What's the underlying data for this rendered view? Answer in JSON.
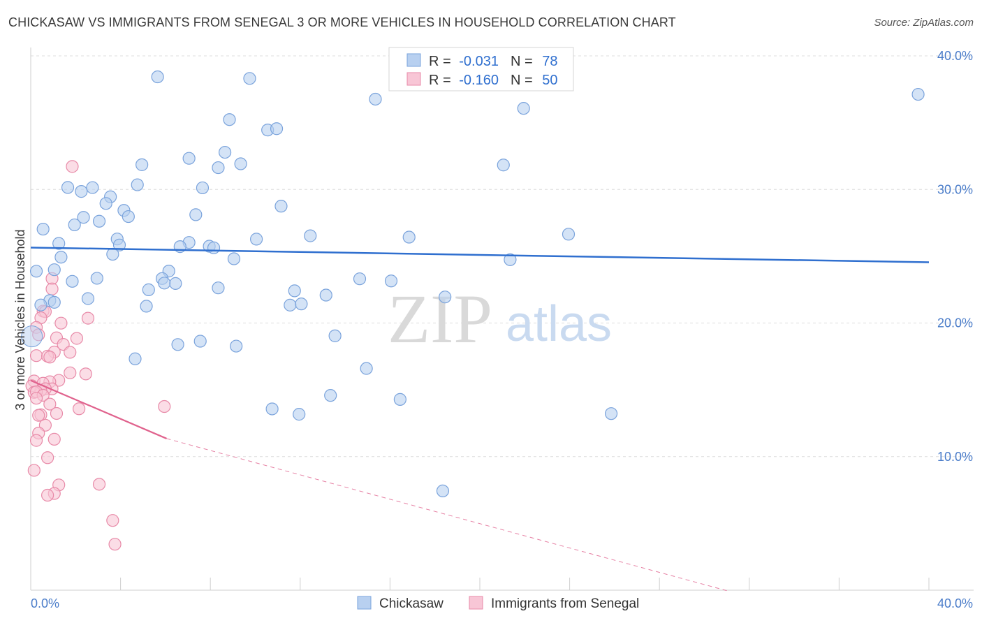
{
  "title": "CHICKASAW VS IMMIGRANTS FROM SENEGAL 3 OR MORE VEHICLES IN HOUSEHOLD CORRELATION CHART",
  "source": "Source: ZipAtlas.com",
  "watermark": {
    "zip": "ZIP",
    "atlas": "atlas"
  },
  "colors": {
    "blue_fill": "#b8d0f0",
    "blue_stroke": "#7aa3dc",
    "blue_line": "#2f6fcf",
    "pink_fill": "#f8c6d6",
    "pink_stroke": "#e88aa8",
    "pink_line": "#e0628d",
    "tick": "#4a7cc9",
    "grid": "#dcdcdc"
  },
  "chart_data": {
    "type": "scatter",
    "title": "CHICKASAW VS IMMIGRANTS FROM SENEGAL 3 OR MORE VEHICLES IN HOUSEHOLD CORRELATION CHART",
    "xlabel": "",
    "ylabel": "3 or more Vehicles in Household",
    "xlim": [
      0,
      0.4
    ],
    "ylim": [
      0,
      0.4
    ],
    "x_tick_labels": [
      "0.0%",
      "40.0%"
    ],
    "y_ticks": [
      {
        "value": 0.1,
        "label": "10.0%"
      },
      {
        "value": 0.2,
        "label": "20.0%"
      },
      {
        "value": 0.3,
        "label": "30.0%"
      },
      {
        "value": 0.4,
        "label": "40.0%"
      }
    ],
    "grid": true,
    "legend_placement": "top-center",
    "stats": [
      {
        "r_label": "R =",
        "r_value": "-0.031",
        "n_label": "N =",
        "n_value": "78"
      },
      {
        "r_label": "R =",
        "r_value": "-0.160",
        "n_label": "N =",
        "n_value": "50"
      }
    ],
    "series": [
      {
        "name": "Chickasaw",
        "trend": {
          "x0": 0.0,
          "y0": 0.2565,
          "x1": 0.4,
          "y1": 0.2455
        },
        "points": [
          [
            0.0565,
            0.3843
          ],
          [
            0.0975,
            0.3831
          ],
          [
            0.1535,
            0.3676
          ],
          [
            0.3952,
            0.3712
          ],
          [
            0.2195,
            0.3607
          ],
          [
            0.0885,
            0.3523
          ],
          [
            0.1055,
            0.3445
          ],
          [
            0.1095,
            0.3455
          ],
          [
            0.0865,
            0.3278
          ],
          [
            0.0705,
            0.3233
          ],
          [
            0.0495,
            0.3185
          ],
          [
            0.0835,
            0.3163
          ],
          [
            0.0935,
            0.3192
          ],
          [
            0.2105,
            0.3183
          ],
          [
            0.0475,
            0.3035
          ],
          [
            0.0765,
            0.3012
          ],
          [
            0.0165,
            0.3015
          ],
          [
            0.0225,
            0.2985
          ],
          [
            0.0275,
            0.3014
          ],
          [
            0.0355,
            0.2945
          ],
          [
            0.0335,
            0.2895
          ],
          [
            0.1115,
            0.2875
          ],
          [
            0.0415,
            0.2843
          ],
          [
            0.0735,
            0.2811
          ],
          [
            0.0435,
            0.2797
          ],
          [
            0.0235,
            0.2791
          ],
          [
            0.0305,
            0.2762
          ],
          [
            0.0195,
            0.2735
          ],
          [
            0.0055,
            0.2703
          ],
          [
            0.2395,
            0.2665
          ],
          [
            0.1245,
            0.2653
          ],
          [
            0.1685,
            0.2643
          ],
          [
            0.0385,
            0.2629
          ],
          [
            0.1005,
            0.2628
          ],
          [
            0.0705,
            0.2603
          ],
          [
            0.0125,
            0.2596
          ],
          [
            0.0395,
            0.2584
          ],
          [
            0.0665,
            0.2572
          ],
          [
            0.0795,
            0.2575
          ],
          [
            0.0815,
            0.2563
          ],
          [
            0.0365,
            0.2515
          ],
          [
            0.0135,
            0.2493
          ],
          [
            0.0905,
            0.2481
          ],
          [
            0.2135,
            0.2474
          ],
          [
            0.0025,
            0.2388
          ],
          [
            0.0105,
            0.2399
          ],
          [
            0.0615,
            0.2389
          ],
          [
            0.0295,
            0.2335
          ],
          [
            0.0585,
            0.2333
          ],
          [
            0.1465,
            0.2331
          ],
          [
            0.1605,
            0.2315
          ],
          [
            0.0185,
            0.2312
          ],
          [
            0.0595,
            0.2299
          ],
          [
            0.0645,
            0.2296
          ],
          [
            0.0835,
            0.2263
          ],
          [
            0.0525,
            0.2249
          ],
          [
            0.1175,
            0.2241
          ],
          [
            0.1315,
            0.2209
          ],
          [
            0.1845,
            0.2195
          ],
          [
            0.0255,
            0.2183
          ],
          [
            0.0085,
            0.2168
          ],
          [
            0.0515,
            0.2126
          ],
          [
            0.1155,
            0.2134
          ],
          [
            0.1205,
            0.2143
          ],
          [
            0.0045,
            0.2135
          ],
          [
            0.0105,
            0.2155
          ],
          [
            0.1355,
            0.1904
          ],
          [
            0.0755,
            0.1864
          ],
          [
            0.0655,
            0.1839
          ],
          [
            0.0915,
            0.1827
          ],
          [
            0.0465,
            0.1732
          ],
          [
            0.1495,
            0.166
          ],
          [
            0.1335,
            0.1458
          ],
          [
            0.1645,
            0.1428
          ],
          [
            0.1075,
            0.1357
          ],
          [
            0.1195,
            0.1317
          ],
          [
            0.2585,
            0.1322
          ],
          [
            0.1835,
            0.0743
          ]
        ]
      },
      {
        "name": "Immigrants from Senegal",
        "trend": {
          "x0": 0.0,
          "y0": 0.157,
          "x1": 0.0605,
          "y1": 0.1135,
          "dash_x1": 0.3105,
          "dash_y1": -0.0006
        },
        "points": [
          [
            0.0185,
            0.3172
          ],
          [
            0.0095,
            0.2333
          ],
          [
            0.0095,
            0.2255
          ],
          [
            0.0055,
            0.2089
          ],
          [
            0.0065,
            0.2085
          ],
          [
            0.0045,
            0.2039
          ],
          [
            0.0255,
            0.2036
          ],
          [
            0.0135,
            0.1999
          ],
          [
            0.0025,
            0.1967
          ],
          [
            0.0035,
            0.1912
          ],
          [
            0.0115,
            0.1889
          ],
          [
            0.0205,
            0.1885
          ],
          [
            0.0145,
            0.184
          ],
          [
            0.0105,
            0.1783
          ],
          [
            0.0175,
            0.1781
          ],
          [
            0.0025,
            0.1756
          ],
          [
            0.0075,
            0.1752
          ],
          [
            0.0085,
            0.1745
          ],
          [
            0.0175,
            0.1627
          ],
          [
            0.0245,
            0.1619
          ],
          [
            0.0125,
            0.1571
          ],
          [
            0.0015,
            0.1566
          ],
          [
            0.0085,
            0.156
          ],
          [
            0.0055,
            0.1549
          ],
          [
            0.0005,
            0.153
          ],
          [
            0.0095,
            0.1507
          ],
          [
            0.0065,
            0.1508
          ],
          [
            0.0045,
            0.1495
          ],
          [
            0.0015,
            0.1481
          ],
          [
            0.0025,
            0.1485
          ],
          [
            0.0055,
            0.1459
          ],
          [
            0.0025,
            0.1437
          ],
          [
            0.0085,
            0.1393
          ],
          [
            0.0595,
            0.1375
          ],
          [
            0.0215,
            0.1358
          ],
          [
            0.0115,
            0.1323
          ],
          [
            0.0045,
            0.1313
          ],
          [
            0.0035,
            0.1309
          ],
          [
            0.0065,
            0.1235
          ],
          [
            0.0035,
            0.1176
          ],
          [
            0.0105,
            0.113
          ],
          [
            0.0025,
            0.1121
          ],
          [
            0.0075,
            0.0992
          ],
          [
            0.0015,
            0.0897
          ],
          [
            0.0305,
            0.0793
          ],
          [
            0.0125,
            0.0788
          ],
          [
            0.0105,
            0.0724
          ],
          [
            0.0075,
            0.0711
          ],
          [
            0.0365,
            0.0522
          ],
          [
            0.0375,
            0.0344
          ]
        ]
      }
    ]
  }
}
